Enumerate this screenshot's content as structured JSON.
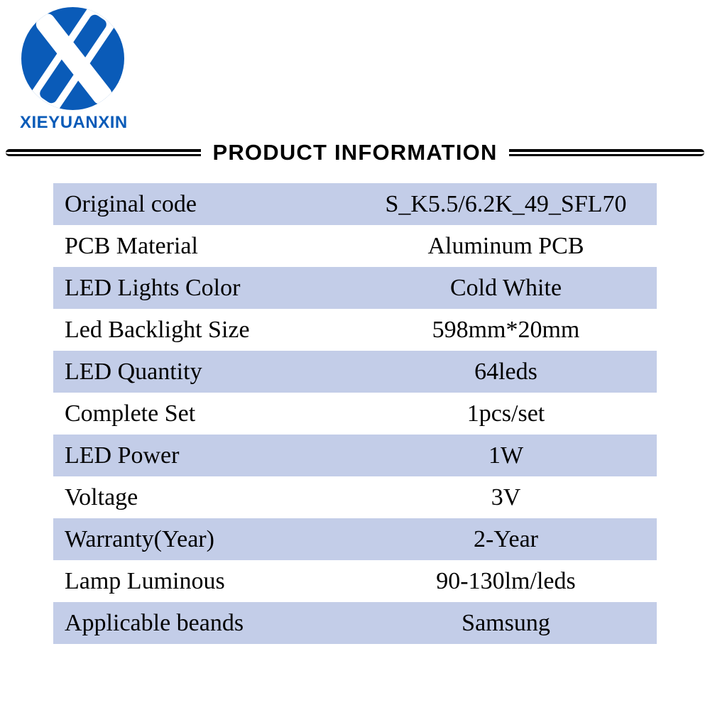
{
  "brand": {
    "name": "XIEYUANXIN",
    "logo_bg_color": "#0a5bb8",
    "logo_fg_color": "#ffffff",
    "brand_text_color": "#0a5bb8"
  },
  "section_title": "PRODUCT INFORMATION",
  "table": {
    "row_alt_color": "#c3cde8",
    "row_color": "#ffffff",
    "text_color": "#000000",
    "font_size": 34,
    "rows": [
      {
        "label": "Original code",
        "value": "S_K5.5/6.2K_49_SFL70"
      },
      {
        "label": "PCB Material",
        "value": "Aluminum PCB"
      },
      {
        "label": "LED Lights Color",
        "value": "Cold White"
      },
      {
        "label": "Led Backlight Size",
        "value": "598mm*20mm"
      },
      {
        "label": "LED Quantity",
        "value": "64leds"
      },
      {
        "label": "Complete Set",
        "value": "1pcs/set"
      },
      {
        "label": "LED Power",
        "value": "1W"
      },
      {
        "label": "Voltage",
        "value": "3V"
      },
      {
        "label": "Warranty(Year)",
        "value": "2-Year"
      },
      {
        "label": "Lamp Luminous",
        "value": "90-130lm/leds"
      },
      {
        "label": "Applicable beands",
        "value": "Samsung"
      }
    ]
  }
}
